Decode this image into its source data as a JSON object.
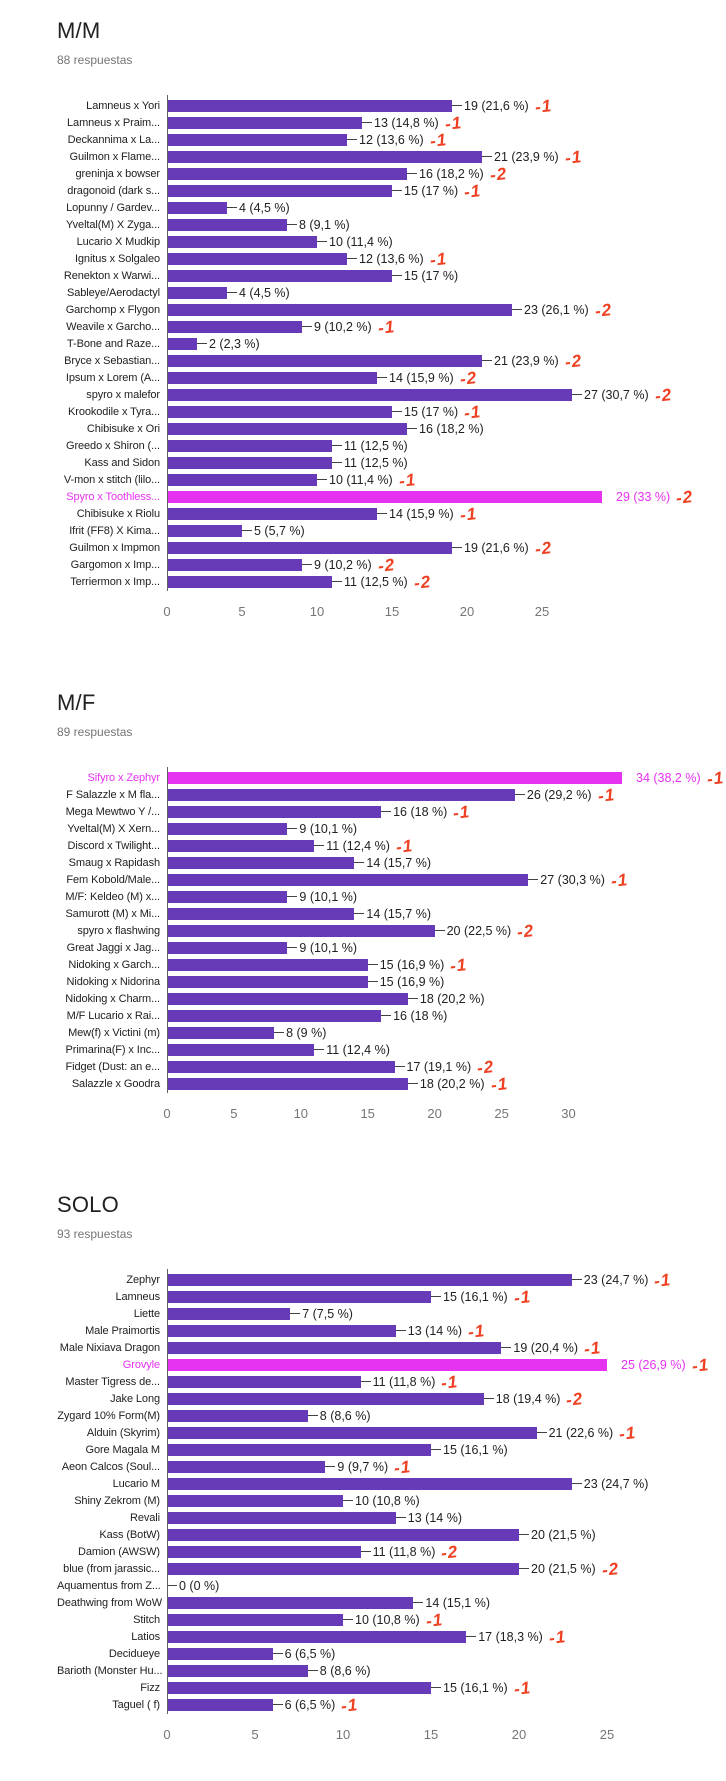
{
  "colors": {
    "bar": "#673ab7",
    "highlight": "#e632f1",
    "annotation_red": "#ee4023",
    "title_text": "#212121",
    "subtitle_text": "#757575",
    "axis_text": "#757575"
  },
  "chart_data": [
    {
      "type": "bar",
      "orientation": "horizontal",
      "title": "M/M",
      "subtitle": "88 respuestas",
      "xlabel": "",
      "ylabel": "",
      "xlim": [
        0,
        29
      ],
      "xticks": [
        0,
        5,
        10,
        15,
        20,
        25
      ],
      "grid": false,
      "legend": "none",
      "rows": [
        {
          "label": "Lamneus x Yori",
          "value": 19,
          "value_label": "19 (21,6 %)",
          "annotation": "-1",
          "highlight": false
        },
        {
          "label": "Lamneus x Praim...",
          "value": 13,
          "value_label": "13 (14,8 %)",
          "annotation": "-1",
          "highlight": false
        },
        {
          "label": "Deckannima x La...",
          "value": 12,
          "value_label": "12 (13,6 %)",
          "annotation": "-1",
          "highlight": false
        },
        {
          "label": "Guilmon x Flame...",
          "value": 21,
          "value_label": "21 (23,9 %)",
          "annotation": "-1",
          "highlight": false
        },
        {
          "label": "greninja x bowser",
          "value": 16,
          "value_label": "16 (18,2 %)",
          "annotation": "-2",
          "highlight": false
        },
        {
          "label": "dragonoid (dark s...",
          "value": 15,
          "value_label": "15 (17 %)",
          "annotation": "-1",
          "highlight": false
        },
        {
          "label": "Lopunny / Gardev...",
          "value": 4,
          "value_label": "4 (4,5 %)",
          "annotation": "",
          "highlight": false
        },
        {
          "label": "Yveltal(M) X Zyga...",
          "value": 8,
          "value_label": "8 (9,1 %)",
          "annotation": "",
          "highlight": false
        },
        {
          "label": "Lucario X Mudkip",
          "value": 10,
          "value_label": "10 (11,4 %)",
          "annotation": "",
          "highlight": false
        },
        {
          "label": "Ignitus x Solgaleo",
          "value": 12,
          "value_label": "12 (13,6 %)",
          "annotation": "-1",
          "highlight": false
        },
        {
          "label": "Renekton x Warwi...",
          "value": 15,
          "value_label": "15 (17 %)",
          "annotation": "",
          "highlight": false
        },
        {
          "label": "Sableye/Aerodactyl",
          "value": 4,
          "value_label": "4 (4,5 %)",
          "annotation": "",
          "highlight": false
        },
        {
          "label": "Garchomp x Flygon",
          "value": 23,
          "value_label": "23 (26,1 %)",
          "annotation": "-2",
          "highlight": false
        },
        {
          "label": "Weavile x Garcho...",
          "value": 9,
          "value_label": "9 (10,2 %)",
          "annotation": "-1",
          "highlight": false
        },
        {
          "label": "T-Bone and Raze...",
          "value": 2,
          "value_label": "2 (2,3 %)",
          "annotation": "",
          "highlight": false
        },
        {
          "label": "Bryce x Sebastian...",
          "value": 21,
          "value_label": "21 (23,9 %)",
          "annotation": "-2",
          "highlight": false
        },
        {
          "label": "Ipsum x Lorem (A...",
          "value": 14,
          "value_label": "14 (15,9 %)",
          "annotation": "-2",
          "highlight": false
        },
        {
          "label": "spyro x malefor",
          "value": 27,
          "value_label": "27 (30,7 %)",
          "annotation": "-2",
          "highlight": false
        },
        {
          "label": "Krookodile x Tyra...",
          "value": 15,
          "value_label": "15 (17 %)",
          "annotation": "-1",
          "highlight": false
        },
        {
          "label": "Chibisuke x Ori",
          "value": 16,
          "value_label": "16 (18,2 %)",
          "annotation": "",
          "highlight": false
        },
        {
          "label": "Greedo x Shiron (...",
          "value": 11,
          "value_label": "11 (12,5 %)",
          "annotation": "",
          "highlight": false
        },
        {
          "label": "Kass and Sidon",
          "value": 11,
          "value_label": "11 (12,5 %)",
          "annotation": "",
          "highlight": false
        },
        {
          "label": "V-mon x stitch (lilo...",
          "value": 10,
          "value_label": "10 (11,4 %)",
          "annotation": "-1",
          "highlight": false
        },
        {
          "label": "Spyro x Toothless...",
          "value": 29,
          "value_label": "29 (33 %)",
          "annotation": "-2",
          "highlight": true
        },
        {
          "label": "Chibisuke x Riolu",
          "value": 14,
          "value_label": "14 (15,9 %)",
          "annotation": "-1",
          "highlight": false
        },
        {
          "label": "Ifrit (FF8) X Kima...",
          "value": 5,
          "value_label": "5 (5,7 %)",
          "annotation": "",
          "highlight": false
        },
        {
          "label": "Guilmon x Impmon",
          "value": 19,
          "value_label": "19 (21,6 %)",
          "annotation": "-2",
          "highlight": false
        },
        {
          "label": "Gargomon x Imp...",
          "value": 9,
          "value_label": "9 (10,2 %)",
          "annotation": "-2",
          "highlight": false
        },
        {
          "label": "Terriermon x Imp...",
          "value": 11,
          "value_label": "11 (12,5 %)",
          "annotation": "-2",
          "highlight": false
        }
      ]
    },
    {
      "type": "bar",
      "orientation": "horizontal",
      "title": "M/F",
      "subtitle": "89 respuestas",
      "xlabel": "",
      "ylabel": "",
      "xlim": [
        0,
        34
      ],
      "xticks": [
        0,
        5,
        10,
        15,
        20,
        25,
        30
      ],
      "grid": false,
      "legend": "none",
      "rows": [
        {
          "label": "Sifyro x Zephyr",
          "value": 34,
          "value_label": "34 (38,2 %)",
          "annotation": "-1",
          "highlight": true
        },
        {
          "label": "F Salazzle x M fla...",
          "value": 26,
          "value_label": "26 (29,2 %)",
          "annotation": "-1",
          "highlight": false
        },
        {
          "label": "Mega Mewtwo Y /...",
          "value": 16,
          "value_label": "16 (18 %)",
          "annotation": "-1",
          "highlight": false
        },
        {
          "label": "Yveltal(M) X Xern...",
          "value": 9,
          "value_label": "9 (10,1 %)",
          "annotation": "",
          "highlight": false
        },
        {
          "label": "Discord x Twilight...",
          "value": 11,
          "value_label": "11 (12,4 %)",
          "annotation": "-1",
          "highlight": false
        },
        {
          "label": "Smaug x Rapidash",
          "value": 14,
          "value_label": "14 (15,7 %)",
          "annotation": "",
          "highlight": false
        },
        {
          "label": "Fem Kobold/Male...",
          "value": 27,
          "value_label": "27 (30,3 %)",
          "annotation": "-1",
          "highlight": false
        },
        {
          "label": "M/F: Keldeo (M) x...",
          "value": 9,
          "value_label": "9 (10,1 %)",
          "annotation": "",
          "highlight": false
        },
        {
          "label": "Samurott (M) x Mi...",
          "value": 14,
          "value_label": "14 (15,7 %)",
          "annotation": "",
          "highlight": false
        },
        {
          "label": "spyro x flashwing",
          "value": 20,
          "value_label": "20 (22,5 %)",
          "annotation": "-2",
          "highlight": false
        },
        {
          "label": "Great Jaggi x Jag...",
          "value": 9,
          "value_label": "9 (10,1 %)",
          "annotation": "",
          "highlight": false
        },
        {
          "label": "Nidoking x Garch...",
          "value": 15,
          "value_label": "15 (16,9 %)",
          "annotation": "-1",
          "highlight": false
        },
        {
          "label": "Nidoking x Nidorina",
          "value": 15,
          "value_label": "15 (16,9 %)",
          "annotation": "",
          "highlight": false
        },
        {
          "label": "Nidoking x Charm...",
          "value": 18,
          "value_label": "18 (20,2 %)",
          "annotation": "",
          "highlight": false
        },
        {
          "label": "M/F Lucario x Rai...",
          "value": 16,
          "value_label": "16 (18 %)",
          "annotation": "",
          "highlight": false
        },
        {
          "label": "Mew(f) x Victini (m)",
          "value": 8,
          "value_label": "8 (9 %)",
          "annotation": "",
          "highlight": false
        },
        {
          "label": "Primarina(F) x Inc...",
          "value": 11,
          "value_label": "11 (12,4 %)",
          "annotation": "",
          "highlight": false
        },
        {
          "label": "Fidget (Dust: an e...",
          "value": 17,
          "value_label": "17 (19,1 %)",
          "annotation": "-2",
          "highlight": false
        },
        {
          "label": "Salazzle x Goodra",
          "value": 18,
          "value_label": "18 (20,2 %)",
          "annotation": "-1",
          "highlight": false
        }
      ]
    },
    {
      "type": "bar",
      "orientation": "horizontal",
      "title": "SOLO",
      "subtitle": "93 respuestas",
      "xlabel": "",
      "ylabel": "",
      "xlim": [
        0,
        25
      ],
      "xticks": [
        0,
        5,
        10,
        15,
        20,
        25
      ],
      "grid": false,
      "legend": "none",
      "rows": [
        {
          "label": "Zephyr",
          "value": 23,
          "value_label": "23 (24,7 %)",
          "annotation": "-1",
          "highlight": false
        },
        {
          "label": "Lamneus",
          "value": 15,
          "value_label": "15 (16,1 %)",
          "annotation": "-1",
          "highlight": false
        },
        {
          "label": "Liette",
          "value": 7,
          "value_label": "7 (7,5 %)",
          "annotation": "",
          "highlight": false
        },
        {
          "label": "Male Praimortis",
          "value": 13,
          "value_label": "13 (14 %)",
          "annotation": "-1",
          "highlight": false
        },
        {
          "label": "Male Nixiava Dragon",
          "value": 19,
          "value_label": "19 (20,4 %)",
          "annotation": "-1",
          "highlight": false
        },
        {
          "label": "Grovyle",
          "value": 25,
          "value_label": "25 (26,9 %)",
          "annotation": "-1",
          "highlight": true
        },
        {
          "label": "Master Tigress de...",
          "value": 11,
          "value_label": "11 (11,8 %)",
          "annotation": "-1",
          "highlight": false
        },
        {
          "label": "Jake Long",
          "value": 18,
          "value_label": "18 (19,4 %)",
          "annotation": "-2",
          "highlight": false
        },
        {
          "label": "Zygard 10% Form(M)",
          "value": 8,
          "value_label": "8 (8,6 %)",
          "annotation": "",
          "highlight": false
        },
        {
          "label": "Alduin (Skyrim)",
          "value": 21,
          "value_label": "21 (22,6 %)",
          "annotation": "-1",
          "highlight": false
        },
        {
          "label": "Gore Magala M",
          "value": 15,
          "value_label": "15 (16,1 %)",
          "annotation": "",
          "highlight": false
        },
        {
          "label": "Aeon Calcos (Soul...",
          "value": 9,
          "value_label": "9 (9,7 %)",
          "annotation": "-1",
          "highlight": false
        },
        {
          "label": "Lucario M",
          "value": 23,
          "value_label": "23 (24,7 %)",
          "annotation": "",
          "highlight": false
        },
        {
          "label": "Shiny Zekrom (M)",
          "value": 10,
          "value_label": "10 (10,8 %)",
          "annotation": "",
          "highlight": false
        },
        {
          "label": "Revali",
          "value": 13,
          "value_label": "13 (14 %)",
          "annotation": "",
          "highlight": false
        },
        {
          "label": "Kass (BotW)",
          "value": 20,
          "value_label": "20 (21,5 %)",
          "annotation": "",
          "highlight": false
        },
        {
          "label": "Damion (AWSW)",
          "value": 11,
          "value_label": "11 (11,8 %)",
          "annotation": "-2",
          "highlight": false
        },
        {
          "label": "blue (from jarassic...",
          "value": 20,
          "value_label": "20 (21,5 %)",
          "annotation": "-2",
          "highlight": false
        },
        {
          "label": "Aquamentus from Z...",
          "value": 0,
          "value_label": "0 (0 %)",
          "annotation": "",
          "highlight": false
        },
        {
          "label": "Deathwing from WoW",
          "value": 14,
          "value_label": "14 (15,1 %)",
          "annotation": "",
          "highlight": false
        },
        {
          "label": "Stitch",
          "value": 10,
          "value_label": "10 (10,8 %)",
          "annotation": "-1",
          "highlight": false
        },
        {
          "label": "Latios",
          "value": 17,
          "value_label": "17 (18,3 %)",
          "annotation": "-1",
          "highlight": false
        },
        {
          "label": "Decidueye",
          "value": 6,
          "value_label": "6 (6,5 %)",
          "annotation": "",
          "highlight": false
        },
        {
          "label": "Barioth (Monster Hu...",
          "value": 8,
          "value_label": "8 (8,6 %)",
          "annotation": "",
          "highlight": false
        },
        {
          "label": "Fizz",
          "value": 15,
          "value_label": "15 (16,1 %)",
          "annotation": "-1",
          "highlight": false
        },
        {
          "label": "Taguel ( f)",
          "value": 6,
          "value_label": "6 (6,5 %)",
          "annotation": "-1",
          "highlight": false
        }
      ]
    }
  ]
}
